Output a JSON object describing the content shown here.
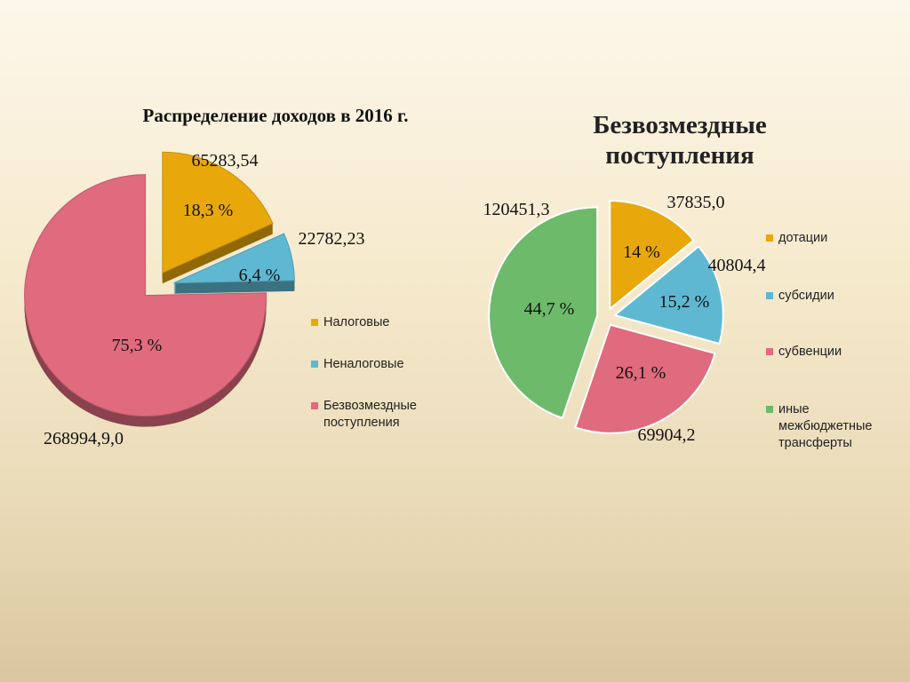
{
  "chart_data": [
    {
      "type": "pie",
      "title": "Распределение доходов в 2016 г.",
      "slices": [
        {
          "name": "Налоговые",
          "value": 65283.54,
          "value_label": "65283,54",
          "percent_label": "18,3 %",
          "color": "#e8a80c"
        },
        {
          "name": "Неналоговые",
          "value": 22782.23,
          "value_label": "22782,23",
          "percent_label": "6,4 %",
          "color": "#5fb8d2"
        },
        {
          "name": "Безвозмездные поступления",
          "value": 268994.9,
          "value_label": "268994,9,0",
          "percent_label": "75,3 %",
          "color": "#e06a7e"
        }
      ],
      "legend_position": "right"
    },
    {
      "type": "pie",
      "title": "Безвозмездные поступления",
      "slices": [
        {
          "name": "дотации",
          "value": 37835.0,
          "value_label": "37835,0",
          "percent_label": "14 %",
          "color": "#e8a80c"
        },
        {
          "name": "субсидии",
          "value": 40804.4,
          "value_label": "40804,4",
          "percent_label": "15,2 %",
          "color": "#5fb8d2"
        },
        {
          "name": "субвенции",
          "value": 69904.2,
          "value_label": "69904,2",
          "percent_label": "26,1 %",
          "color": "#e06a7e"
        },
        {
          "name": "иные межбюджетные трансферты",
          "value": 120451.3,
          "value_label": "120451,3",
          "percent_label": "44,7 %",
          "color": "#6cba6a"
        }
      ],
      "legend_position": "right"
    }
  ]
}
